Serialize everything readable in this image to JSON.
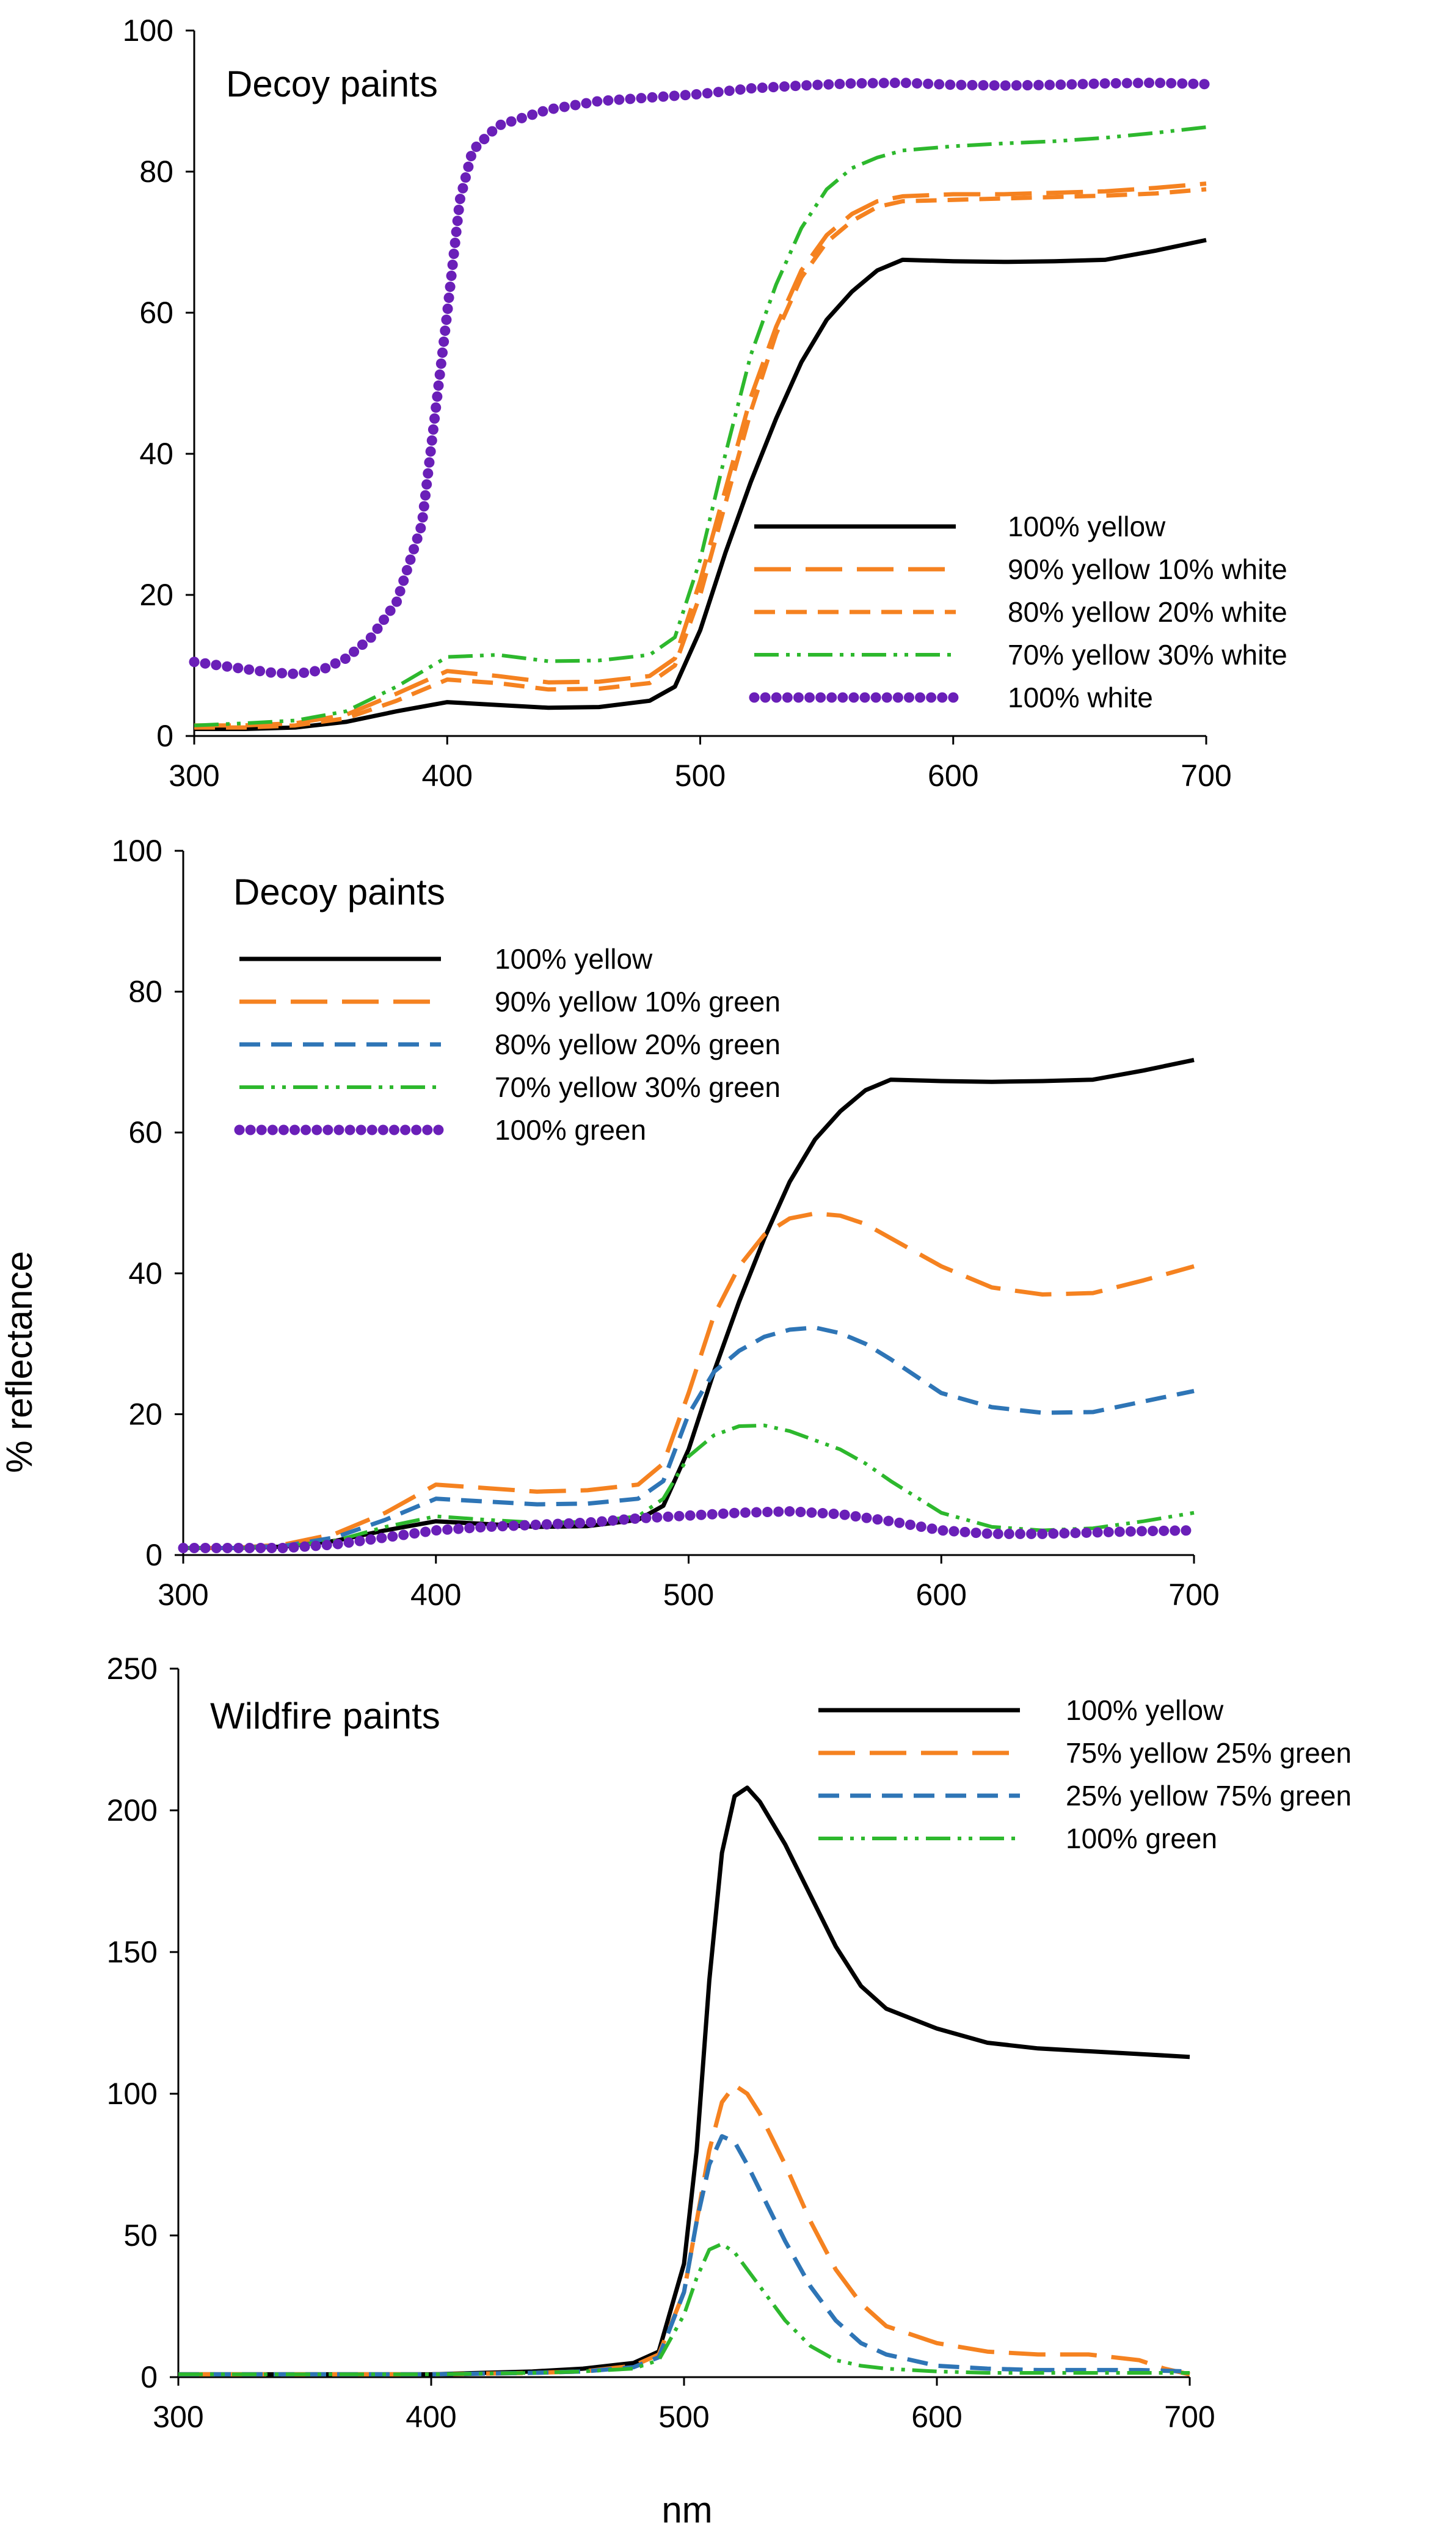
{
  "figure": {
    "ylabel": "% reflectance",
    "xlabel": "nm"
  },
  "colors": {
    "black": "#000000",
    "orange": "#F58220",
    "blue": "#2E75B6",
    "green": "#2DB82D",
    "purple": "#6A1FB8"
  },
  "chart_data": [
    {
      "type": "line",
      "title": "Decoy paints",
      "xlabel": "",
      "ylabel": "",
      "xlim": [
        300,
        700
      ],
      "ylim": [
        0,
        100
      ],
      "xticks": [
        "300",
        "400",
        "500",
        "600",
        "700"
      ],
      "yticks": [
        "0",
        "20",
        "40",
        "60",
        "80",
        "100"
      ],
      "legend_position": "bottom-right",
      "series": [
        {
          "name": "100% yellow",
          "color": "black",
          "style": "solid",
          "x": [
            300,
            320,
            340,
            360,
            380,
            400,
            420,
            440,
            460,
            480,
            490,
            500,
            510,
            520,
            530,
            540,
            550,
            560,
            570,
            580,
            600,
            620,
            640,
            660,
            680,
            700
          ],
          "y": [
            1,
            1,
            1.2,
            2,
            3.5,
            4.8,
            4.4,
            4,
            4.1,
            5,
            7,
            15,
            26,
            36,
            45,
            53,
            59,
            63,
            66,
            67.5,
            67.3,
            67.2,
            67.3,
            67.5,
            68.8,
            70.3
          ]
        },
        {
          "name": "90% yellow 10% white",
          "color": "orange",
          "style": "longdash",
          "x": [
            300,
            320,
            340,
            360,
            380,
            400,
            420,
            440,
            460,
            480,
            490,
            500,
            510,
            520,
            530,
            540,
            550,
            560,
            570,
            580,
            600,
            620,
            640,
            660,
            680,
            700
          ],
          "y": [
            1.5,
            1.5,
            1.8,
            3,
            6,
            9.2,
            8.5,
            7.6,
            7.7,
            8.5,
            11,
            22,
            35,
            48,
            58,
            66,
            71,
            74,
            75.8,
            76.5,
            76.8,
            76.8,
            77,
            77.2,
            77.7,
            78.3
          ]
        },
        {
          "name": "80% yellow 20% white",
          "color": "orange",
          "style": "shortdash",
          "x": [
            300,
            320,
            340,
            360,
            380,
            400,
            420,
            440,
            460,
            480,
            490,
            500,
            510,
            520,
            530,
            540,
            550,
            560,
            570,
            580,
            600,
            620,
            640,
            660,
            680,
            700
          ],
          "y": [
            1.2,
            1.2,
            1.5,
            2.5,
            5,
            8,
            7.5,
            6.6,
            6.7,
            7.5,
            10,
            20,
            33,
            46,
            57,
            65,
            70,
            73,
            75,
            75.8,
            76,
            76.2,
            76.4,
            76.6,
            76.9,
            77.5
          ]
        },
        {
          "name": "70% yellow 30% white",
          "color": "green",
          "style": "dashdotdot",
          "x": [
            300,
            320,
            340,
            360,
            380,
            400,
            420,
            440,
            460,
            480,
            490,
            500,
            510,
            520,
            530,
            540,
            550,
            560,
            570,
            580,
            600,
            620,
            640,
            660,
            680,
            700
          ],
          "y": [
            1.5,
            1.8,
            2.2,
            3.5,
            7,
            11.2,
            11.5,
            10.6,
            10.7,
            11.5,
            14,
            25,
            40,
            54,
            64,
            72,
            77.5,
            80.5,
            82,
            83,
            83.6,
            84,
            84.3,
            84.8,
            85.5,
            86.3
          ]
        },
        {
          "name": "100% white",
          "color": "purple",
          "style": "dotted",
          "x": [
            300,
            310,
            320,
            330,
            340,
            350,
            360,
            370,
            380,
            390,
            400,
            405,
            410,
            420,
            440,
            460,
            480,
            500,
            520,
            540,
            560,
            580,
            600,
            620,
            640,
            660,
            680,
            700
          ],
          "y": [
            10.5,
            10,
            9.5,
            9,
            8.8,
            9.3,
            11,
            14,
            19,
            30,
            60,
            76,
            83,
            86.5,
            88.8,
            90,
            90.5,
            91,
            91.8,
            92.2,
            92.5,
            92.6,
            92.3,
            92.2,
            92.3,
            92.5,
            92.6,
            92.4
          ]
        }
      ]
    },
    {
      "type": "line",
      "title": "Decoy paints",
      "xlabel": "",
      "ylabel": "% reflectance",
      "xlim": [
        300,
        700
      ],
      "ylim": [
        0,
        100
      ],
      "xticks": [
        "300",
        "400",
        "500",
        "600",
        "700"
      ],
      "yticks": [
        "0",
        "20",
        "40",
        "60",
        "80",
        "100"
      ],
      "legend_position": "top-left",
      "series": [
        {
          "name": "100% yellow",
          "color": "black",
          "style": "solid",
          "x": [
            300,
            320,
            340,
            360,
            380,
            400,
            420,
            440,
            460,
            480,
            490,
            500,
            510,
            520,
            530,
            540,
            550,
            560,
            570,
            580,
            600,
            620,
            640,
            660,
            680,
            700
          ],
          "y": [
            1,
            1,
            1.2,
            2,
            3.5,
            4.8,
            4.4,
            4,
            4.1,
            5,
            7,
            15,
            26,
            36,
            45,
            53,
            59,
            63,
            66,
            67.5,
            67.3,
            67.2,
            67.3,
            67.5,
            68.8,
            70.3
          ]
        },
        {
          "name": "90% yellow 10% green",
          "color": "orange",
          "style": "longdash",
          "x": [
            300,
            320,
            340,
            360,
            380,
            400,
            420,
            440,
            460,
            480,
            490,
            500,
            510,
            520,
            530,
            540,
            550,
            560,
            570,
            580,
            600,
            620,
            640,
            660,
            680,
            700
          ],
          "y": [
            1,
            1,
            1.5,
            3,
            6,
            10,
            9.5,
            9,
            9.2,
            10,
            13,
            23,
            34,
            41,
            45.5,
            47.8,
            48.5,
            48.2,
            47,
            45,
            41,
            38,
            37,
            37.2,
            39,
            41
          ]
        },
        {
          "name": "80% yellow 20% green",
          "color": "blue",
          "style": "shortdash",
          "x": [
            300,
            320,
            340,
            360,
            380,
            400,
            420,
            440,
            460,
            480,
            490,
            500,
            510,
            520,
            530,
            540,
            550,
            560,
            570,
            580,
            600,
            620,
            640,
            660,
            680,
            700
          ],
          "y": [
            1,
            1,
            1.3,
            2.5,
            5,
            8,
            7.6,
            7.2,
            7.3,
            8,
            10.5,
            20,
            26,
            29,
            31,
            32,
            32.3,
            31.5,
            30,
            27.8,
            23,
            21,
            20.2,
            20.3,
            21.8,
            23.3
          ]
        },
        {
          "name": "70% yellow 30% green",
          "color": "green",
          "style": "dashdotdot",
          "x": [
            300,
            320,
            340,
            360,
            380,
            400,
            420,
            440,
            460,
            480,
            490,
            500,
            510,
            520,
            530,
            540,
            550,
            560,
            570,
            580,
            600,
            620,
            640,
            660,
            680,
            700
          ],
          "y": [
            1,
            1,
            1.2,
            2,
            4,
            5.5,
            5,
            4.6,
            4.7,
            5.5,
            8,
            14,
            17,
            18.3,
            18.4,
            17.6,
            16.3,
            15,
            13,
            10.5,
            6,
            4,
            3.5,
            3.8,
            4.8,
            6
          ]
        },
        {
          "name": "100% green",
          "color": "purple",
          "style": "dotted",
          "x": [
            300,
            320,
            340,
            360,
            380,
            400,
            420,
            440,
            460,
            480,
            500,
            520,
            540,
            560,
            580,
            600,
            620,
            640,
            660,
            680,
            700
          ],
          "y": [
            1,
            1,
            1,
            1.5,
            2.5,
            3.5,
            4,
            4.3,
            4.6,
            5.2,
            5.6,
            6,
            6.2,
            5.8,
            4.8,
            3.5,
            3,
            3,
            3.2,
            3.4,
            3.5
          ]
        }
      ]
    },
    {
      "type": "line",
      "title": "Wildfire paints",
      "xlabel": "nm",
      "ylabel": "",
      "xlim": [
        300,
        700
      ],
      "ylim": [
        0,
        250
      ],
      "xticks": [
        "300",
        "400",
        "500",
        "600",
        "700"
      ],
      "yticks": [
        "0",
        "50",
        "100",
        "150",
        "200",
        "250"
      ],
      "legend_position": "top-right",
      "series": [
        {
          "name": "100% yellow",
          "color": "black",
          "style": "solid",
          "x": [
            300,
            350,
            400,
            440,
            460,
            480,
            490,
            500,
            505,
            510,
            515,
            520,
            525,
            530,
            540,
            550,
            560,
            570,
            580,
            600,
            620,
            640,
            660,
            680,
            700
          ],
          "y": [
            1,
            1,
            1,
            2,
            3,
            5,
            9,
            40,
            80,
            140,
            185,
            205,
            208,
            203,
            188,
            170,
            152,
            138,
            130,
            123,
            118,
            116,
            115,
            114,
            113
          ]
        },
        {
          "name": "75% yellow 25% green",
          "color": "orange",
          "style": "longdash",
          "x": [
            300,
            350,
            400,
            440,
            460,
            480,
            490,
            500,
            505,
            510,
            515,
            520,
            525,
            530,
            540,
            550,
            560,
            570,
            580,
            600,
            620,
            640,
            660,
            680,
            690,
            700
          ],
          "y": [
            1,
            1,
            1,
            1.5,
            2,
            4,
            8,
            30,
            55,
            80,
            97,
            103,
            100,
            93,
            75,
            55,
            38,
            26,
            18,
            12,
            9,
            8,
            8,
            6,
            3,
            1
          ]
        },
        {
          "name": "25% yellow 75% green",
          "color": "blue",
          "style": "shortdash",
          "x": [
            300,
            350,
            400,
            440,
            460,
            480,
            490,
            500,
            505,
            510,
            515,
            520,
            525,
            530,
            540,
            550,
            560,
            570,
            580,
            600,
            620,
            640,
            660,
            680,
            700
          ],
          "y": [
            1,
            1,
            1,
            1.5,
            2,
            3.5,
            7,
            30,
            55,
            75,
            85,
            83,
            75,
            66,
            48,
            32,
            20,
            12,
            8,
            4,
            3,
            2.5,
            2.5,
            2.5,
            2
          ]
        },
        {
          "name": "100% green",
          "color": "green",
          "style": "dashdotdot",
          "x": [
            300,
            350,
            400,
            440,
            460,
            480,
            490,
            500,
            505,
            510,
            515,
            520,
            525,
            530,
            540,
            550,
            560,
            570,
            580,
            600,
            620,
            640,
            660,
            680,
            700
          ],
          "y": [
            1,
            1,
            1,
            1.5,
            2,
            3,
            6,
            22,
            35,
            45,
            47,
            44,
            38,
            32,
            20,
            11,
            6,
            4,
            3,
            2,
            1.5,
            1.5,
            1.5,
            1.5,
            1.5
          ]
        }
      ]
    }
  ]
}
